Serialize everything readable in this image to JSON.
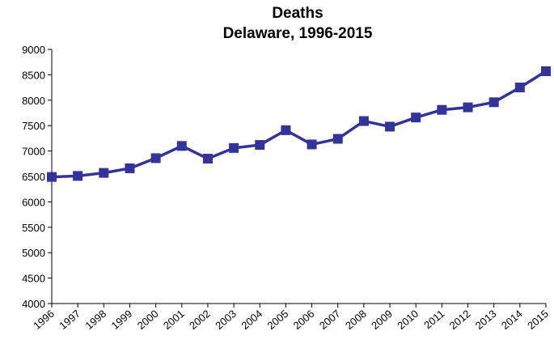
{
  "chart_data": {
    "type": "line",
    "title": "Deaths",
    "subtitle": "Delaware, 1996-2015",
    "x": [
      1996,
      1997,
      1998,
      1999,
      2000,
      2001,
      2002,
      2003,
      2004,
      2005,
      2006,
      2007,
      2008,
      2009,
      2010,
      2011,
      2012,
      2013,
      2014,
      2015
    ],
    "series": [
      {
        "name": "Deaths",
        "color": "#333399",
        "values": [
          6490,
          6510,
          6570,
          6660,
          6860,
          7100,
          6850,
          7060,
          7120,
          7410,
          7130,
          7240,
          7590,
          7480,
          7660,
          7810,
          7860,
          7960,
          8250,
          8570
        ]
      }
    ],
    "xlim": [
      1996,
      2015
    ],
    "xticks": [
      1996,
      1997,
      1998,
      1999,
      2000,
      2001,
      2002,
      2003,
      2004,
      2005,
      2006,
      2007,
      2008,
      2009,
      2010,
      2011,
      2012,
      2013,
      2014,
      2015
    ],
    "ylim": [
      4000,
      9000
    ],
    "yticks": [
      4000,
      4500,
      5000,
      5500,
      6000,
      6500,
      7000,
      7500,
      8000,
      8500,
      9000
    ],
    "grid": false
  }
}
